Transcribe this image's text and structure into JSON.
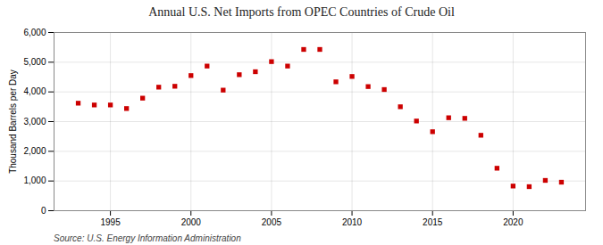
{
  "chart_data": {
    "type": "scatter",
    "title": "Annual U.S. Net Imports from OPEC Countries of Crude Oil",
    "ylabel": "Thousand Barrels per Day",
    "source": "Source: U.S. Energy Information Administration",
    "x": [
      1993,
      1994,
      1995,
      1996,
      1997,
      1998,
      1999,
      2000,
      2001,
      2002,
      2003,
      2004,
      2005,
      2006,
      2007,
      2008,
      2009,
      2010,
      2011,
      2012,
      2013,
      2014,
      2015,
      2016,
      2017,
      2018,
      2019,
      2020,
      2021,
      2022,
      2023
    ],
    "values": [
      3620,
      3560,
      3560,
      3440,
      3790,
      4160,
      4190,
      4550,
      4870,
      4060,
      4580,
      4680,
      5020,
      4870,
      5430,
      5430,
      4340,
      4520,
      4180,
      4080,
      3500,
      3020,
      2660,
      3130,
      3110,
      2540,
      1430,
      830,
      810,
      1020,
      960
    ],
    "color": "#cc0000",
    "marker": "square",
    "ylim": [
      0,
      6000
    ],
    "yticks": [
      0,
      {
        "value": 1000,
        "label": "1,000"
      },
      {
        "value": 2000,
        "label": "2,000"
      },
      {
        "value": 3000,
        "label": "3,000"
      },
      {
        "value": 4000,
        "label": "4,000"
      },
      {
        "value": 5000,
        "label": "5,000"
      },
      {
        "value": 6000,
        "label": "6,000"
      }
    ],
    "xlim": [
      1991.5,
      2024.5
    ],
    "xticks": [
      1995,
      2000,
      2005,
      2010,
      2015,
      2020
    ],
    "grid": true
  }
}
